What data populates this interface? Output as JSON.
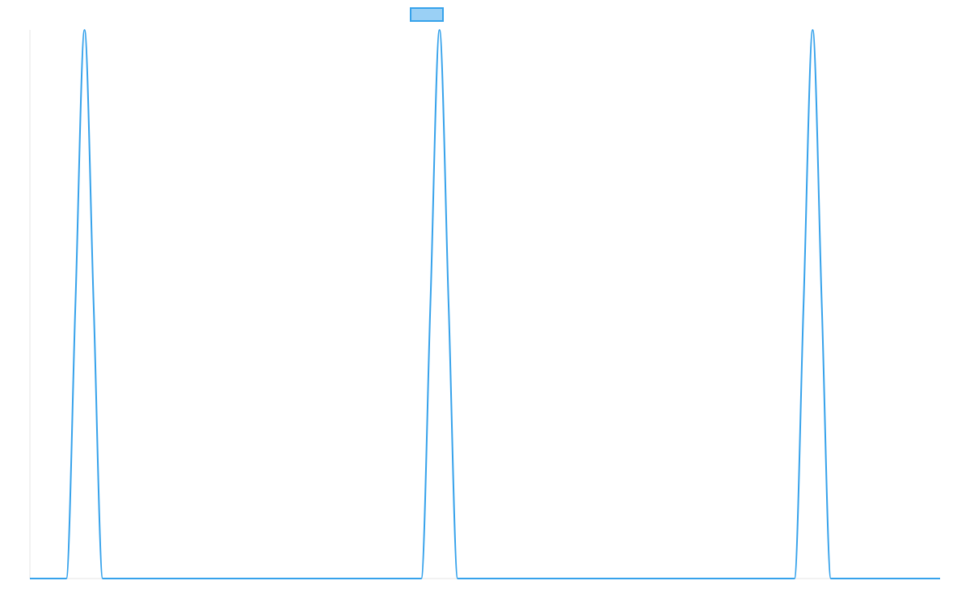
{
  "chart_data": {
    "type": "line",
    "title": "",
    "xlabel": "",
    "ylabel": "",
    "grid": false,
    "legend": "top-center",
    "xlim": [
      0,
      100
    ],
    "ylim": [
      0,
      1
    ],
    "series": [
      {
        "color": "#36a2eb",
        "fill": "#9ad0f5",
        "x": [
          0,
          4,
          5,
          6,
          7,
          8,
          43,
          44,
          45,
          46,
          47,
          84,
          85,
          86,
          87,
          88,
          100
        ],
        "values": [
          0,
          0,
          0.5,
          1,
          0.5,
          0,
          0,
          0.5,
          1,
          0.5,
          0,
          0,
          0.5,
          1,
          0.5,
          0,
          0
        ]
      }
    ]
  }
}
